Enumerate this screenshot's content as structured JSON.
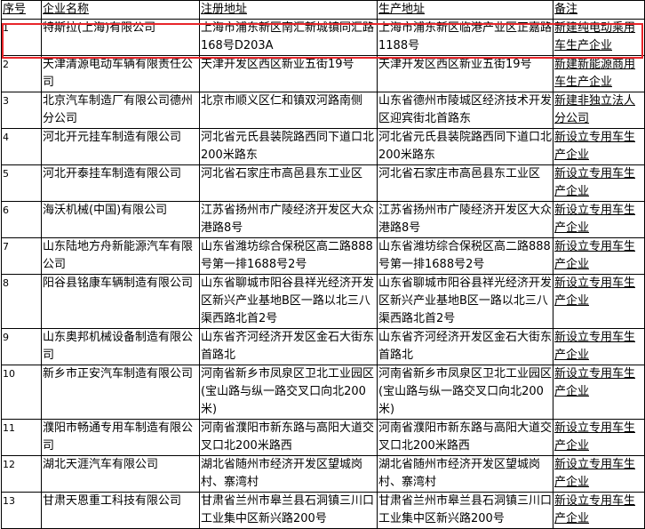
{
  "table": {
    "headers": [
      "序号",
      "企业名称",
      "注册地址",
      "生产地址",
      "备注"
    ],
    "rows": [
      [
        "1",
        "特斯拉(上海)有限公司",
        "上海市浦东新区南汇新城镇同汇路168号D203A",
        "上海市浦东新区临港产业区正嘉路1188号",
        "新建纯电动乘用车生产企业"
      ],
      [
        "2",
        "天津清源电动车辆有限责任公司",
        "天津开发区西区新业五街19号",
        "天津开发区西区新业五街19号",
        "新建新能源商用车生产企业"
      ],
      [
        "3",
        "北京汽车制造厂有限公司德州分公司",
        "北京市顺义区仁和镇双河路南侧",
        "山东省德州市陵城区经济技术开发区迎宾街北首路东",
        "新建非独立法人分公司"
      ],
      [
        "4",
        "河北开元挂车制造有限公司",
        "河北省元氏县装院路西同下道口北200米路东",
        "河北省元氏县装院路西同下道口北200米路东",
        "新设立专用车生产企业"
      ],
      [
        "5",
        "河北开泰挂车制造有限公司",
        "河北省石家庄市高邑县东工业区",
        "河北省石家庄市高邑县东工业区",
        "新设立专用车生产企业"
      ],
      [
        "6",
        "海沃机械(中国)有限公司",
        "江苏省扬州市广陵经济开发区大众港路8号",
        "江苏省扬州市广陵经济开发区大众港路8号",
        "新设立专用车生产企业"
      ],
      [
        "7",
        "山东陆地方舟新能源汽车有限公司",
        "山东省潍坊综合保税区高二路888号第一排1688号2号",
        "山东省潍坊综合保税区高二路888号第一排1688号2号",
        "新设立专用车生产企业"
      ],
      [
        "8",
        "阳谷县铭康车辆制造有限公司",
        "山东省聊城市阳谷县祥光经济开发区新兴产业基地B区一路以北三八渠西路北首2号",
        "山东省聊城市阳谷县祥光经济开发区新兴产业基地B区一路以北三八渠西路北首2号",
        "新设立专用车生产企业"
      ],
      [
        "9",
        "山东奥邦机械设备制造有限公司",
        "山东省齐河经济开发区金石大街东首路北",
        "山东省齐河经济开发区金石大街东首路北",
        "新设立专用车生产企业"
      ],
      [
        "10",
        "新乡市正安汽车制造有限公司",
        "河南省新乡市凤泉区卫北工业园区(宝山路与纵一路交叉口向北200米)",
        "河南省新乡市凤泉区卫北工业园区(宝山路与纵一路交叉口向北200米)",
        "新设立专用车生产企业"
      ],
      [
        "11",
        "濮阳市畅通专用车制造有限公司",
        "河南省濮阳市新东路与高阳大道交叉口北200米路西",
        "河南省濮阳市新东路与高阳大道交叉口北200米路西",
        "新设立专用车生产企业"
      ],
      [
        "12",
        "湖北天涯汽车有限公司",
        "湖北省随州市经济开发区望城岗村、寨湾村",
        "湖北省随州市经济开发区望城岗村、寨湾村",
        "新设立专用车生产企业"
      ],
      [
        "13",
        "甘肃天恩重工科技有限公司",
        "甘肃省兰州市皋兰县石洞镇三川口工业集中区新兴路200号",
        "甘肃省兰州市皋兰县石洞镇三川口工业集中区新兴路200号",
        "新设立专用车生产企业"
      ]
    ]
  },
  "highlight": {
    "row": "1",
    "color": "#e8262b"
  }
}
